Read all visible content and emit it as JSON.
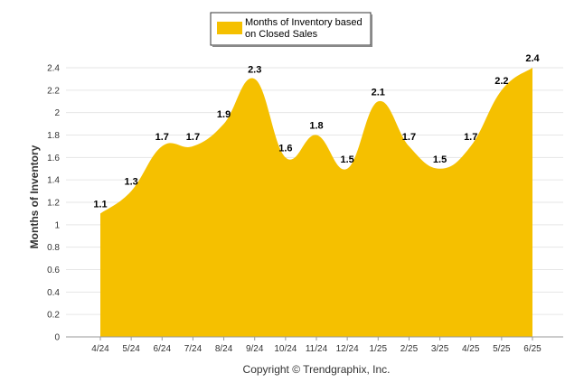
{
  "chart_data": {
    "type": "area",
    "categories": [
      "4/24",
      "5/24",
      "6/24",
      "7/24",
      "8/24",
      "9/24",
      "10/24",
      "11/24",
      "12/24",
      "1/25",
      "2/25",
      "3/25",
      "4/25",
      "5/25",
      "6/25"
    ],
    "series": [
      {
        "name": "Months of Inventory based on Closed Sales",
        "values": [
          1.1,
          1.3,
          1.7,
          1.7,
          1.9,
          2.3,
          1.6,
          1.8,
          1.5,
          2.1,
          1.7,
          1.5,
          1.7,
          2.2,
          2.4
        ],
        "color": "#F5C000"
      }
    ],
    "ylabel": "Months of Inventory",
    "xlabel": "",
    "ylim": [
      0,
      2.4
    ],
    "yticks": [
      0,
      0.2,
      0.4,
      0.6,
      0.8,
      1,
      1.2,
      1.4,
      1.6,
      1.8,
      2,
      2.2,
      2.4
    ],
    "legend": {
      "position": "top",
      "label_line1": "Months of Inventory based",
      "label_line2": "on Closed Sales"
    },
    "grid": true,
    "data_labels": true
  },
  "footer": {
    "copyright": "Copyright © Trendgraphix, Inc."
  },
  "colors": {
    "fill": "#F5C000",
    "grid": "#E6E6E6",
    "axis": "#999999"
  }
}
